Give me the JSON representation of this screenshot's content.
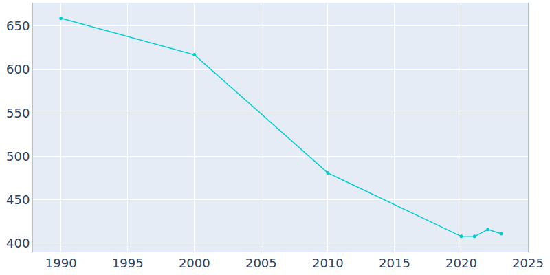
{
  "chart_data": {
    "type": "line",
    "x": [
      1990,
      2000,
      2010,
      2020,
      2021,
      2022,
      2023
    ],
    "values": [
      659,
      617,
      481,
      408,
      408,
      416,
      411
    ],
    "color": "#00ced1",
    "marker": "circle",
    "line_style": "solid",
    "xlim": [
      1987.9,
      2025
    ],
    "xticks": [
      1990,
      1995,
      2000,
      2005,
      2010,
      2015,
      2020,
      2025
    ],
    "ylim": [
      390.5,
      676
    ],
    "yticks": [
      400,
      450,
      500,
      550,
      600,
      650
    ],
    "grid": true
  }
}
